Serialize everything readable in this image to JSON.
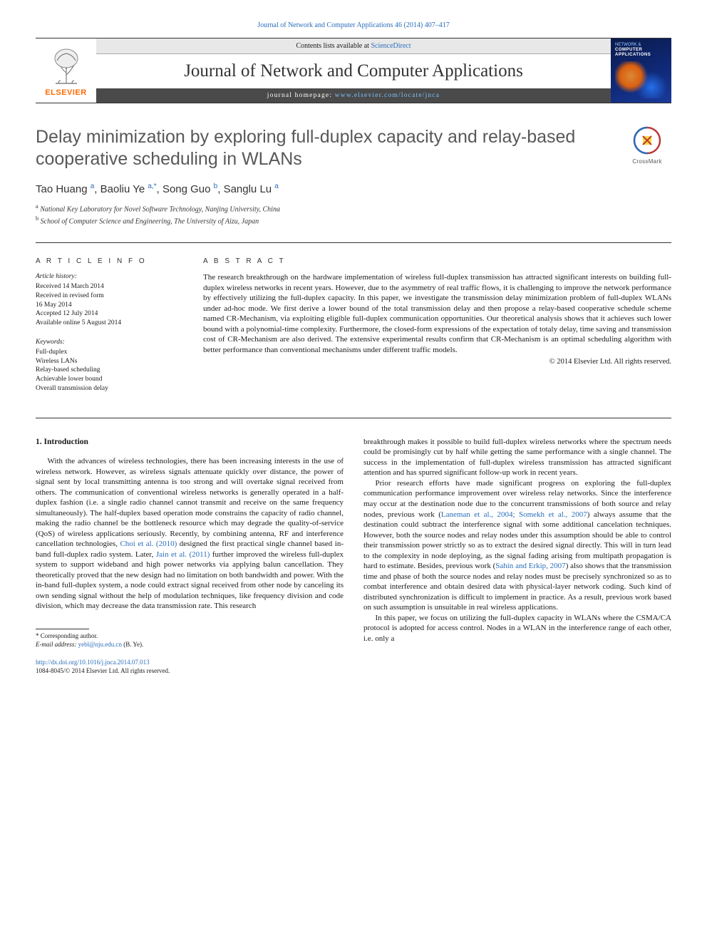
{
  "top_link": "Journal of Network and Computer Applications 46 (2014) 407–417",
  "header": {
    "publisher_name": "ELSEVIER",
    "contents_prefix": "Contents lists available at ",
    "contents_link": "ScienceDirect",
    "journal_title": "Journal of Network and Computer Applications",
    "homepage_prefix": "journal homepage: ",
    "homepage_url": "www.elsevier.com/locate/jnca",
    "cover_line1": "NETWORK &",
    "cover_line2": "COMPUTER",
    "cover_line3": "APPLICATIONS"
  },
  "crossmark_label": "CrossMark",
  "article": {
    "title": "Delay minimization by exploring full-duplex capacity and relay-based cooperative scheduling in WLANs",
    "authors_html": "Tao Huang <sup>a</sup>, Baoliu Ye <sup>a,*</sup>, Song Guo <sup>b</sup>, Sanglu Lu <sup>a</sup>",
    "affiliations": [
      {
        "sup": "a",
        "text": "National Key Laboratory for Novel Software Technology, Nanjing University, China"
      },
      {
        "sup": "b",
        "text": "School of Computer Science and Engineering, The University of Aizu, Japan"
      }
    ]
  },
  "info": {
    "heading": "A R T I C L E   I N F O",
    "history_label": "Article history:",
    "history": [
      "Received 14 March 2014",
      "Received in revised form",
      "16 May 2014",
      "Accepted 12 July 2014",
      "Available online 5 August 2014"
    ],
    "keywords_label": "Keywords:",
    "keywords": [
      "Full-duplex",
      "Wireless LANs",
      "Relay-based scheduling",
      "Achievable lower bound",
      "Overall transmission delay"
    ]
  },
  "abstract": {
    "heading": "A B S T R A C T",
    "body": "The research breakthrough on the hardware implementation of wireless full-duplex transmission has attracted significant interests on building full-duplex wireless networks in recent years. However, due to the asymmetry of real traffic flows, it is challenging to improve the network performance by effectively utilizing the full-duplex capacity. In this paper, we investigate the transmission delay minimization problem of full-duplex WLANs under ad-hoc mode. We first derive a lower bound of the total transmission delay and then propose a relay-based cooperative schedule scheme named CR-Mechanism, via exploiting eligible full-duplex communication opportunities. Our theoretical analysis shows that it achieves such lower bound with a polynomial-time complexity. Furthermore, the closed-form expressions of the expectation of totaly delay, time saving and transmission cost of CR-Mechanism are also derived. The extensive experimental results confirm that CR-Mechanism is an optimal scheduling algorithm with better performance than conventional mechanisms under different traffic models.",
    "copyright": "© 2014 Elsevier Ltd. All rights reserved."
  },
  "section1": {
    "heading": "1.  Introduction",
    "left_paras": [
      "With the advances of wireless technologies, there has been increasing interests in the use of wireless network. However, as wireless signals attenuate quickly over distance, the power of signal sent by local transmitting antenna is too strong and will overtake signal received from others. The communication of conventional wireless networks is generally operated in a half-duplex fashion (i.e. a single radio channel cannot transmit and receive on the same frequency simultaneously). The half-duplex based operation mode constrains the capacity of radio channel, making the radio channel be the bottleneck resource which may degrade the quality-of-service (QoS) of wireless applications seriously. Recently, by combining antenna, RF and interference cancellation technologies, Choi et al. (2010) designed the first practical single channel based in-band full-duplex radio system. Later, Jain et al. (2011) further improved the wireless full-duplex system to support wideband and high power networks via applying balun cancellation. They theoretically proved that the new design had no limitation on both bandwidth and power. With the in-band full-duplex system, a node could extract signal received from other node by canceling its own sending signal without the help of modulation techniques, like frequency division and code division, which may decrease the data transmission rate. This research"
    ],
    "right_paras": [
      "breakthrough makes it possible to build full-duplex wireless networks where the spectrum needs could be promisingly cut by half while getting the same performance with a single channel. The success in the implementation of full-duplex wireless transmission has attracted significant attention and has spurred significant follow-up work in recent years.",
      "Prior research efforts have made significant progress on exploring the full-duplex communication performance improvement over wireless relay networks. Since the interference may occur at the destination node due to the concurrent transmissions of both source and relay nodes, previous work (Laneman et al., 2004; Somekh et al., 2007) always assume that the destination could subtract the interference signal with some additional cancelation techniques. However, both the source nodes and relay nodes under this assumption should be able to control their transmission power strictly so as to extract the desired signal directly. This will in turn lead to the complexity in node deploying, as the signal fading arising from multipath propagation is hard to estimate. Besides, previous work (Sahin and Erkip, 2007) also shows that the transmission time and phase of both the source nodes and relay nodes must be precisely synchronized so as to combat interference and obtain desired data with physical-layer network coding. Such kind of distributed synchronization is difficult to implement in practice. As a result, previous work based on such assumption is unsuitable in real wireless applications.",
      "In this paper, we focus on utilizing the full-duplex capacity in WLANs where the CSMA/CA protocol is adopted for access control. Nodes in a WLAN in the interference range of each other, i.e. only a"
    ],
    "link_refs": {
      "choi": "Choi et al. (2010)",
      "jain": "Jain et al. (2011)",
      "laneman": "Laneman et al., 2004; Somekh et al., 2007",
      "sahin": "Sahin and Erkip, 2007"
    }
  },
  "footnotes": {
    "corr_label": "* Corresponding author.",
    "email_label": "E-mail address: ",
    "email": "yebl@nju.edu.cn",
    "email_suffix": " (B. Ye)."
  },
  "doi": {
    "url": "http://dx.doi.org/10.1016/j.jnca.2014.07.013",
    "issn_line": "1084-8045/© 2014 Elsevier Ltd. All rights reserved."
  },
  "colors": {
    "link": "#2a6ebb",
    "elsevier_orange": "#ff6a00",
    "title_grey": "#585858",
    "homepage_bar_bg": "#4a4a4a",
    "contents_bar_bg": "#e8e8e8",
    "cover_bg": "#102a7a"
  },
  "typography": {
    "body_pt": 11,
    "title_pt": 25,
    "journal_title_pt": 25,
    "authors_pt": 15,
    "meta_pt": 9.5,
    "footnote_pt": 9
  }
}
